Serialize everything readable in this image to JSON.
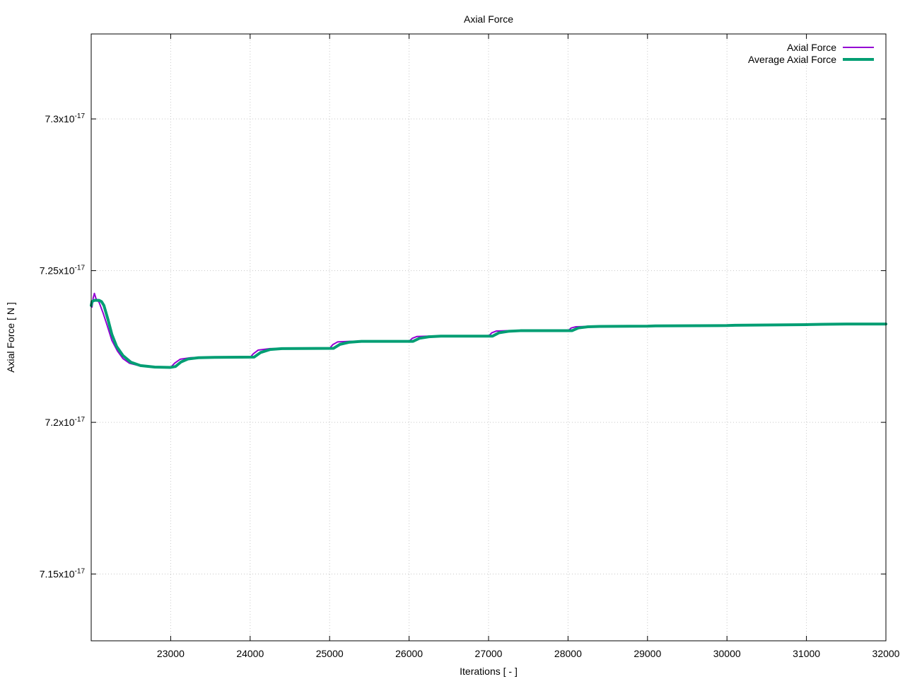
{
  "chart_data": {
    "type": "line",
    "title": "Axial Force",
    "xlabel": "Iterations [ - ]",
    "ylabel": "Axial Force [ N ]",
    "xlim": [
      22000,
      32000
    ],
    "ylim": [
      7.128e-17,
      7.328e-17
    ],
    "x_ticks": [
      23000,
      24000,
      25000,
      26000,
      27000,
      28000,
      29000,
      30000,
      31000,
      32000
    ],
    "x_tick_labels": [
      "23000",
      "24000",
      "25000",
      "26000",
      "27000",
      "28000",
      "29000",
      "30000",
      "31000",
      "32000"
    ],
    "y_ticks": [
      7.15e-17,
      7.2e-17,
      7.25e-17,
      7.3e-17
    ],
    "y_tick_labels": [
      {
        "mantissa": "7.15x10",
        "exponent": "-17"
      },
      {
        "mantissa": "7.2x10",
        "exponent": "-17"
      },
      {
        "mantissa": "7.25x10",
        "exponent": "-17"
      },
      {
        "mantissa": "7.3x10",
        "exponent": "-17"
      }
    ],
    "grid": true,
    "legend_position": "top-right",
    "series": [
      {
        "name": "Axial Force",
        "color": "#9400d3",
        "points": [
          [
            22000,
            7.2398e-17
          ],
          [
            22010,
            7.238e-17
          ],
          [
            22025,
            7.241e-17
          ],
          [
            22040,
            7.2425e-17
          ],
          [
            22060,
            7.2408e-17
          ],
          [
            22100,
            7.2395e-17
          ],
          [
            22150,
            7.236e-17
          ],
          [
            22200,
            7.232e-17
          ],
          [
            22260,
            7.227e-17
          ],
          [
            22330,
            7.2235e-17
          ],
          [
            22400,
            7.221e-17
          ],
          [
            22480,
            7.2195e-17
          ],
          [
            22600,
            7.2187e-17
          ],
          [
            22750,
            7.2182e-17
          ],
          [
            23000,
            7.2181e-17
          ],
          [
            23050,
            7.2195e-17
          ],
          [
            23120,
            7.2208e-17
          ],
          [
            23250,
            7.2213e-17
          ],
          [
            23400,
            7.2214e-17
          ],
          [
            24000,
            7.2214e-17
          ],
          [
            24040,
            7.2226e-17
          ],
          [
            24100,
            7.2238e-17
          ],
          [
            24250,
            7.2243e-17
          ],
          [
            25000,
            7.2244e-17
          ],
          [
            25040,
            7.2256e-17
          ],
          [
            25100,
            7.2265e-17
          ],
          [
            25250,
            7.2267e-17
          ],
          [
            26000,
            7.2267e-17
          ],
          [
            26040,
            7.2277e-17
          ],
          [
            26100,
            7.2283e-17
          ],
          [
            26250,
            7.2284e-17
          ],
          [
            27000,
            7.2284e-17
          ],
          [
            27040,
            7.2295e-17
          ],
          [
            27100,
            7.2301e-17
          ],
          [
            27250,
            7.2302e-17
          ],
          [
            28000,
            7.2302e-17
          ],
          [
            28040,
            7.2311e-17
          ],
          [
            28100,
            7.2315e-17
          ],
          [
            28250,
            7.2316e-17
          ],
          [
            29000,
            7.2317e-17
          ],
          [
            29100,
            7.2318e-17
          ],
          [
            30000,
            7.2319e-17
          ],
          [
            30100,
            7.232e-17
          ],
          [
            31000,
            7.2322e-17
          ],
          [
            31200,
            7.2323e-17
          ],
          [
            31500,
            7.2324e-17
          ],
          [
            31800,
            7.2324e-17
          ],
          [
            32000,
            7.2324e-17
          ]
        ]
      },
      {
        "name": "Average Axial Force",
        "color": "#009e73",
        "points": [
          [
            22000,
            7.2385e-17
          ],
          [
            22010,
            7.2398e-17
          ],
          [
            22040,
            7.2402e-17
          ],
          [
            22100,
            7.2402e-17
          ],
          [
            22130,
            7.2398e-17
          ],
          [
            22160,
            7.2385e-17
          ],
          [
            22210,
            7.234e-17
          ],
          [
            22260,
            7.229e-17
          ],
          [
            22320,
            7.225e-17
          ],
          [
            22400,
            7.222e-17
          ],
          [
            22500,
            7.2198e-17
          ],
          [
            22620,
            7.2187e-17
          ],
          [
            22800,
            7.2182e-17
          ],
          [
            23000,
            7.2181e-17
          ],
          [
            23060,
            7.2184e-17
          ],
          [
            23130,
            7.2199e-17
          ],
          [
            23220,
            7.2209e-17
          ],
          [
            23350,
            7.2213e-17
          ],
          [
            23550,
            7.2214e-17
          ],
          [
            24050,
            7.2215e-17
          ],
          [
            24130,
            7.223e-17
          ],
          [
            24250,
            7.224e-17
          ],
          [
            24400,
            7.2243e-17
          ],
          [
            25050,
            7.2244e-17
          ],
          [
            25130,
            7.2257e-17
          ],
          [
            25250,
            7.2264e-17
          ],
          [
            25400,
            7.2267e-17
          ],
          [
            26050,
            7.2267e-17
          ],
          [
            26130,
            7.2277e-17
          ],
          [
            26250,
            7.2282e-17
          ],
          [
            26400,
            7.2284e-17
          ],
          [
            27050,
            7.2284e-17
          ],
          [
            27130,
            7.2295e-17
          ],
          [
            27250,
            7.23e-17
          ],
          [
            27400,
            7.2302e-17
          ],
          [
            28050,
            7.2302e-17
          ],
          [
            28130,
            7.2311e-17
          ],
          [
            28250,
            7.2315e-17
          ],
          [
            28400,
            7.2316e-17
          ],
          [
            29000,
            7.2317e-17
          ],
          [
            29100,
            7.2318e-17
          ],
          [
            30000,
            7.2319e-17
          ],
          [
            30100,
            7.232e-17
          ],
          [
            31000,
            7.2322e-17
          ],
          [
            31200,
            7.2323e-17
          ],
          [
            31500,
            7.2324e-17
          ],
          [
            31800,
            7.2324e-17
          ],
          [
            32000,
            7.2324e-17
          ]
        ]
      }
    ]
  }
}
